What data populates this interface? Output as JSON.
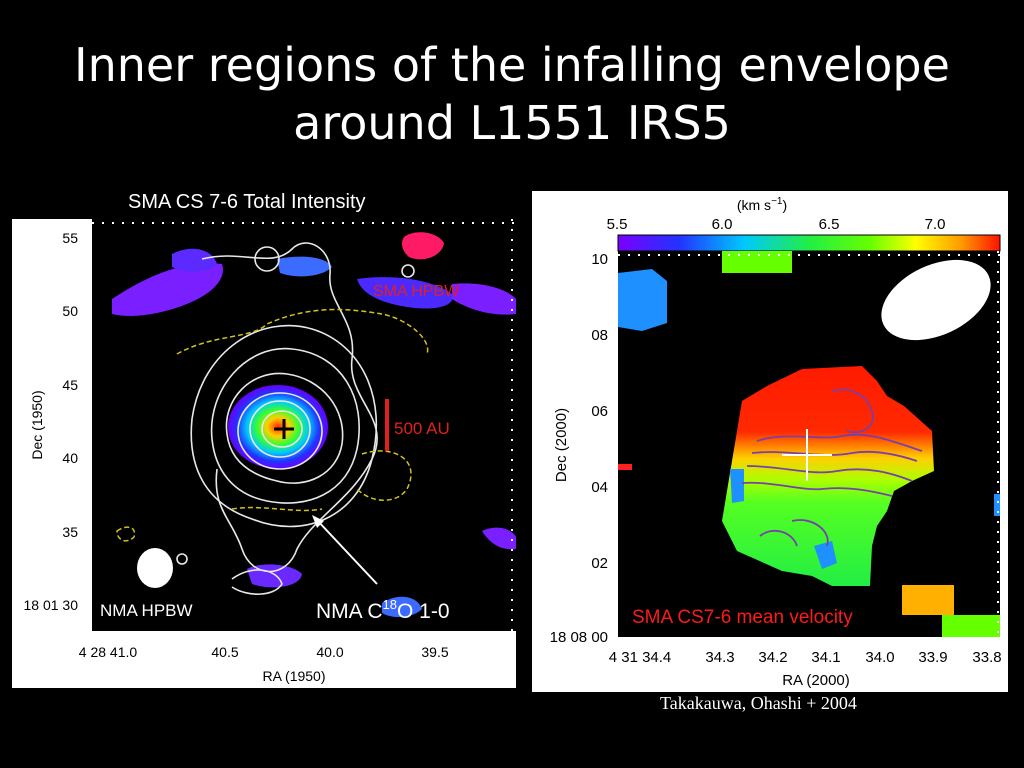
{
  "slide": {
    "title_line1": "Inner regions of the infalling envelope",
    "title_line2": "around L1551 IRS5",
    "credit": "Takakauwa, Ohashi + 2004"
  },
  "left_panel": {
    "caption": "SMA CS 7-6 Total Intensity",
    "y_axis_label": "Dec (1950)",
    "x_axis_label": "RA (1950)",
    "y_ticks": [
      "55",
      "50",
      "45",
      "40",
      "35",
      "18 01 30"
    ],
    "x_ticks": [
      "4 28 41.0",
      "40.5",
      "40.0",
      "39.5"
    ],
    "beam_labels": {
      "sma": "SMA HPBW",
      "nma": "NMA HPBW"
    },
    "scale_bar_label": "500 AU",
    "tracer_label": {
      "prefix": "NMA C",
      "superscript": "18",
      "suffix": "O 1-0"
    },
    "colors": {
      "contour": "#e8e8e8",
      "dashed_contour": "#d4c21a",
      "sma_beam": "#ff1a66",
      "scale_bar": "#e02020"
    }
  },
  "right_panel": {
    "colorbar_unit_prefix": "(km s",
    "colorbar_unit_exponent": "−1",
    "colorbar_unit_suffix": ")",
    "colorbar_ticks": [
      "5.5",
      "6.0",
      "6.5",
      "7.0"
    ],
    "y_axis_label": "Dec (2000)",
    "x_axis_label": "RA (2000)",
    "y_ticks": [
      "10",
      "08",
      "06",
      "04",
      "02",
      "18 08 00"
    ],
    "x_ticks": [
      "4 31 34.4",
      "34.3",
      "34.2",
      "34.1",
      "34.0",
      "33.9",
      "33.8"
    ],
    "map_label": "SMA CS7-6 mean velocity",
    "colors": {
      "map_label": "#ff1a1a",
      "contour": "#7a3fa8"
    }
  }
}
